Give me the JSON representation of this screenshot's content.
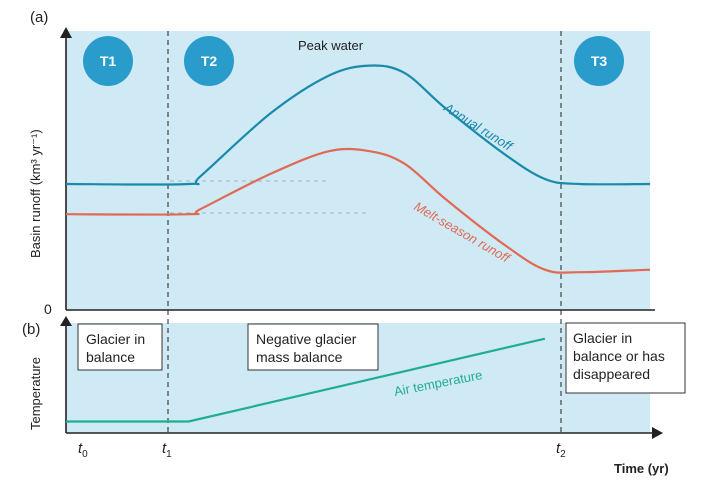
{
  "colors": {
    "panel_bg": "#cfe9f5",
    "annual": "#1a8aaa",
    "melt": "#e06a55",
    "air": "#1fae8f",
    "badge": "#2a9ccb",
    "axis": "#222222"
  },
  "panel_a": {
    "label": "(a)",
    "ylabel": "Basin runoff (km³ yr⁻¹)",
    "zero_label": "0",
    "peak_label": "Peak water",
    "stages": [
      "T1",
      "T2",
      "T3"
    ]
  },
  "panel_b": {
    "label": "(b)",
    "ylabel": "Temperature",
    "box1": [
      "Glacier in",
      "balance"
    ],
    "box2": [
      "Negative glacier",
      "mass balance"
    ],
    "box3": [
      "Glacier in",
      "balance or has",
      "disappeared"
    ]
  },
  "x_axis": {
    "ticks": [
      {
        "main": "t",
        "sub": "0"
      },
      {
        "main": "t",
        "sub": "1"
      },
      {
        "main": "t",
        "sub": "2"
      }
    ],
    "label": "Time (yr)"
  },
  "chart_data": [
    {
      "type": "line",
      "panel": "a",
      "ylabel": "Basin runoff (km³ yr⁻¹)",
      "xlabel": "Time (yr)",
      "xlim": [
        0,
        100
      ],
      "ylim": [
        0,
        100
      ],
      "annotations": [
        "Peak water",
        "T1",
        "T2",
        "T3"
      ],
      "series": [
        {
          "name": "Annual runoff",
          "x": [
            0,
            21,
            23,
            35,
            45,
            52,
            58,
            65,
            75,
            82,
            88,
            100
          ],
          "y": [
            50,
            50,
            53,
            78,
            93,
            97,
            94,
            80,
            62,
            52,
            50,
            50
          ]
        },
        {
          "name": "Melt-season runoff",
          "x": [
            0,
            21,
            23,
            35,
            45,
            52,
            58,
            65,
            75,
            82,
            88,
            100
          ],
          "y": [
            38,
            38,
            40,
            54,
            63,
            63,
            58,
            44,
            26,
            16,
            15,
            16
          ]
        }
      ]
    },
    {
      "type": "line",
      "panel": "b",
      "ylabel": "Temperature",
      "xlabel": "Time (yr)",
      "xlim": [
        0,
        100
      ],
      "ylim": [
        0,
        100
      ],
      "series": [
        {
          "name": "Air temperature",
          "x": [
            0,
            21,
            82
          ],
          "y": [
            10,
            10,
            82
          ]
        }
      ]
    }
  ]
}
